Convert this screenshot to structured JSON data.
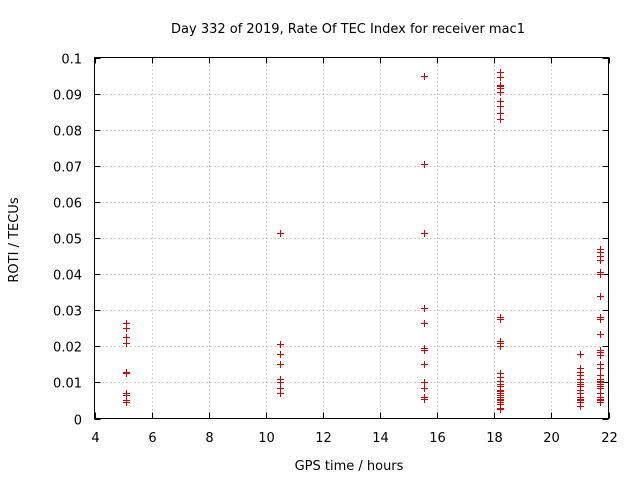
{
  "chart_data": {
    "type": "scatter",
    "title": "Day 332 of 2019, Rate Of TEC Index for receiver mac1",
    "xlabel": "GPS time / hours",
    "ylabel": "ROTI / TECUs",
    "xlim": [
      4,
      22
    ],
    "ylim": [
      0,
      0.1
    ],
    "xticks": [
      4,
      6,
      8,
      10,
      12,
      14,
      16,
      18,
      20,
      22
    ],
    "yticks": [
      0,
      0.01,
      0.02,
      0.03,
      0.04,
      0.05,
      0.06,
      0.07,
      0.08,
      0.09,
      0.1
    ],
    "xtick_labels": [
      "4",
      "6",
      "8",
      "10",
      "12",
      "14",
      "16",
      "18",
      "20",
      "22"
    ],
    "ytick_labels": [
      "0",
      "0.01",
      "0.02",
      "0.03",
      "0.04",
      "0.05",
      "0.06",
      "0.07",
      "0.08",
      "0.09",
      "0.1"
    ],
    "grid": true,
    "marker": "plus",
    "color": "#dd0000",
    "series": [
      {
        "name": "ROTI",
        "points": [
          [
            5.12,
            0.0265
          ],
          [
            5.12,
            0.025
          ],
          [
            5.12,
            0.0225
          ],
          [
            5.12,
            0.021
          ],
          [
            5.12,
            0.013
          ],
          [
            5.12,
            0.0125
          ],
          [
            5.12,
            0.007
          ],
          [
            5.12,
            0.0065
          ],
          [
            5.12,
            0.005
          ],
          [
            5.12,
            0.0045
          ],
          [
            10.5,
            0.0515
          ],
          [
            10.5,
            0.0205
          ],
          [
            10.5,
            0.018
          ],
          [
            10.5,
            0.015
          ],
          [
            10.5,
            0.011
          ],
          [
            10.5,
            0.01
          ],
          [
            10.5,
            0.0085
          ],
          [
            10.5,
            0.007
          ],
          [
            15.55,
            0.095
          ],
          [
            15.55,
            0.0705
          ],
          [
            15.55,
            0.0515
          ],
          [
            15.55,
            0.0305
          ],
          [
            15.55,
            0.0265
          ],
          [
            15.55,
            0.0195
          ],
          [
            15.55,
            0.019
          ],
          [
            15.55,
            0.015
          ],
          [
            15.55,
            0.01
          ],
          [
            15.55,
            0.0085
          ],
          [
            15.55,
            0.006
          ],
          [
            15.55,
            0.0055
          ],
          [
            18.2,
            0.096
          ],
          [
            18.2,
            0.0945
          ],
          [
            18.2,
            0.0925
          ],
          [
            18.2,
            0.092
          ],
          [
            18.2,
            0.0915
          ],
          [
            18.2,
            0.0905
          ],
          [
            18.2,
            0.088
          ],
          [
            18.2,
            0.0865
          ],
          [
            18.2,
            0.0845
          ],
          [
            18.2,
            0.083
          ],
          [
            18.2,
            0.028
          ],
          [
            18.2,
            0.0275
          ],
          [
            18.2,
            0.0215
          ],
          [
            18.2,
            0.021
          ],
          [
            18.2,
            0.02
          ],
          [
            18.2,
            0.0125
          ],
          [
            18.2,
            0.0115
          ],
          [
            18.2,
            0.0105
          ],
          [
            18.2,
            0.0095
          ],
          [
            18.2,
            0.009
          ],
          [
            18.2,
            0.008
          ],
          [
            18.2,
            0.0075
          ],
          [
            18.2,
            0.007
          ],
          [
            18.2,
            0.0065
          ],
          [
            18.2,
            0.006
          ],
          [
            18.2,
            0.0055
          ],
          [
            18.2,
            0.005
          ],
          [
            18.2,
            0.0045
          ],
          [
            18.2,
            0.004
          ],
          [
            18.2,
            0.003
          ],
          [
            18.2,
            0.0025
          ],
          [
            21.0,
            0.018
          ],
          [
            21.0,
            0.014
          ],
          [
            21.0,
            0.013
          ],
          [
            21.0,
            0.012
          ],
          [
            21.0,
            0.011
          ],
          [
            21.0,
            0.01
          ],
          [
            21.0,
            0.0095
          ],
          [
            21.0,
            0.009
          ],
          [
            21.0,
            0.008
          ],
          [
            21.0,
            0.007
          ],
          [
            21.0,
            0.006
          ],
          [
            21.0,
            0.0055
          ],
          [
            21.0,
            0.005
          ],
          [
            21.0,
            0.0045
          ],
          [
            21.0,
            0.0035
          ],
          [
            21.7,
            0.047
          ],
          [
            21.7,
            0.046
          ],
          [
            21.7,
            0.045
          ],
          [
            21.7,
            0.044
          ],
          [
            21.7,
            0.0405
          ],
          [
            21.7,
            0.04
          ],
          [
            21.7,
            0.034
          ],
          [
            21.7,
            0.028
          ],
          [
            21.7,
            0.0275
          ],
          [
            21.7,
            0.0235
          ],
          [
            21.7,
            0.019
          ],
          [
            21.7,
            0.0185
          ],
          [
            21.7,
            0.0175
          ],
          [
            21.7,
            0.015
          ],
          [
            21.7,
            0.014
          ],
          [
            21.7,
            0.012
          ],
          [
            21.7,
            0.011
          ],
          [
            21.7,
            0.0105
          ],
          [
            21.7,
            0.01
          ],
          [
            21.7,
            0.0095
          ],
          [
            21.7,
            0.009
          ],
          [
            21.7,
            0.0085
          ],
          [
            21.7,
            0.007
          ],
          [
            21.7,
            0.006
          ],
          [
            21.7,
            0.0055
          ],
          [
            21.7,
            0.005
          ],
          [
            21.7,
            0.0045
          ]
        ]
      }
    ]
  }
}
